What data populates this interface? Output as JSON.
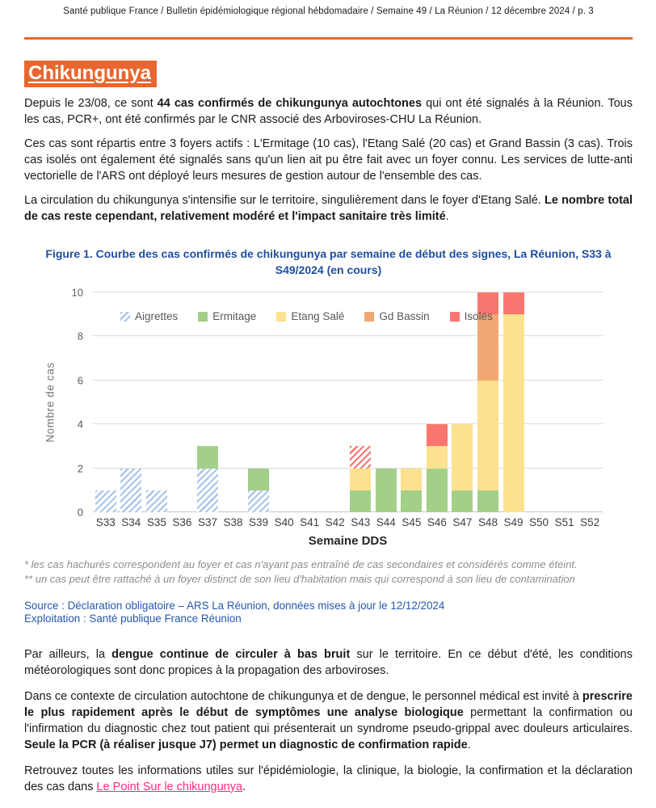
{
  "header": {
    "line": "Santé publique France / Bulletin épidémiologique régional hébdomadaire / Semaine 49 / La Réunion / 12 décembre 2024 / p. 3"
  },
  "section": {
    "title": "Chikungunya"
  },
  "intro_paragraphs": [
    {
      "runs": [
        {
          "t": "Depuis le 23/08, ce sont "
        },
        {
          "t": "44 cas confirmés de chikungunya autochtones",
          "b": true
        },
        {
          "t": " qui ont été signalés à la Réunion. Tous les cas, PCR+, ont été confirmés par le CNR associé des Arboviroses-CHU La Réunion."
        }
      ]
    },
    {
      "runs": [
        {
          "t": "Ces cas sont répartis entre 3 foyers actifs : L'Ermitage (10 cas), l'Etang Salé (20 cas) et Grand Bassin (3 cas). Trois cas isolés ont également été signalés sans qu'un lien ait pu être fait avec un foyer connu. Les services de lutte-anti vectorielle de l'ARS ont déployé leurs mesures de gestion autour de l'ensemble des cas."
        }
      ]
    },
    {
      "runs": [
        {
          "t": "La circulation du chikungunya s'intensifie sur le territoire, singulièrement dans le foyer d'Etang Salé. "
        },
        {
          "t": "Le nombre total de cas reste cependant, relativement modéré et l'impact sanitaire très limité",
          "b": true
        },
        {
          "t": "."
        }
      ]
    }
  ],
  "figure": {
    "title": "Figure 1. Courbe des cas confirmés de chikungunya par semaine de début des signes, La Réunion, S33 à S49/2024 (en cours)"
  },
  "chart_data": {
    "type": "bar",
    "stacked": true,
    "title": "Figure 1. Courbe des cas confirmés de chikungunya par semaine de début des signes, La Réunion, S33 à S49/2024 (en cours)",
    "xlabel": "Semaine DDS",
    "ylabel": "Nombre de cas",
    "ylim": [
      0,
      10
    ],
    "yticks": [
      0,
      2,
      4,
      6,
      8,
      10
    ],
    "grid": "horizontal",
    "legend_position": "top-inside",
    "categories": [
      "S33",
      "S34",
      "S35",
      "S36",
      "S37",
      "S38",
      "S39",
      "S40",
      "S41",
      "S42",
      "S43",
      "S44",
      "S45",
      "S46",
      "S47",
      "S48",
      "S49",
      "S50",
      "S51",
      "S52"
    ],
    "series": [
      {
        "name": "Aigrettes",
        "color": "#A9C5E8",
        "hatched": true,
        "values": [
          1,
          2,
          1,
          0,
          2,
          0,
          1,
          0,
          0,
          0,
          0,
          0,
          0,
          0,
          0,
          0,
          0,
          0,
          0,
          0
        ]
      },
      {
        "name": "Ermitage",
        "color": "#A3CF88",
        "values": [
          0,
          0,
          0,
          0,
          1,
          0,
          1,
          0,
          0,
          0,
          1,
          2,
          1,
          2,
          1,
          1,
          0,
          0,
          0,
          0
        ]
      },
      {
        "name": "Etang Salé",
        "color": "#FDE18F",
        "values": [
          0,
          0,
          0,
          0,
          0,
          0,
          0,
          0,
          0,
          0,
          1,
          0,
          1,
          1,
          3,
          5,
          9,
          0,
          0,
          0
        ]
      },
      {
        "name": "Gd Bassin",
        "color": "#F2A873",
        "values": [
          0,
          0,
          0,
          0,
          0,
          0,
          0,
          0,
          0,
          0,
          0,
          0,
          0,
          0,
          0,
          3,
          0,
          0,
          0,
          0
        ]
      },
      {
        "name": "Isolés",
        "color": "#F8766F",
        "values": [
          0,
          0,
          0,
          0,
          0,
          0,
          0,
          0,
          0,
          0,
          0,
          0,
          0,
          1,
          0,
          1,
          1,
          0,
          0,
          0
        ]
      },
      {
        "name": "Isolés (hachurés)",
        "color": "#F8766F",
        "hatched": true,
        "in_legend": false,
        "values": [
          0,
          0,
          0,
          0,
          0,
          0,
          0,
          0,
          0,
          0,
          1,
          0,
          0,
          0,
          0,
          0,
          0,
          0,
          0,
          0
        ]
      }
    ]
  },
  "footnotes": [
    "* les cas hachurés correspondent au foyer et cas n'ayant pas entraîné de cas secondaires et considérés comme éteint.",
    "** un cas peut être rattaché à un foyer distinct de son lieu d'habitation mais qui correspond à son lieu de contamination"
  ],
  "source": {
    "line1": "Source : Déclaration obligatoire – ARS La Réunion, données mises à jour le 12/12/2024",
    "line2": "Exploitation : Santé publique France Réunion"
  },
  "body_paragraphs": [
    {
      "runs": [
        {
          "t": "Par ailleurs, la "
        },
        {
          "t": "dengue continue de circuler à bas bruit",
          "b": true
        },
        {
          "t": " sur le territoire. En ce début d'été, les conditions météorologiques sont donc propices à la propagation des arboviroses."
        }
      ]
    },
    {
      "runs": [
        {
          "t": "Dans ce contexte de circulation autochtone de chikungunya et de dengue, le personnel médical est invité à "
        },
        {
          "t": "prescrire le plus rapidement après le début de symptômes une analyse biologique",
          "b": true
        },
        {
          "t": " permettant la confirmation ou l'infirmation du diagnostic chez tout patient qui présenterait un syndrome pseudo-grippal avec douleurs articulaires. "
        },
        {
          "t": "Seule la PCR (à réaliser jusque J7) permet un diagnostic de confirmation rapide",
          "b": true
        },
        {
          "t": "."
        }
      ]
    },
    {
      "runs": [
        {
          "t": "Retrouvez toutes les informations utiles sur l'épidémiologie, la clinique, la biologie, la confirmation et la déclaration des cas dans "
        },
        {
          "t": "Le Point Sur le chikungunya",
          "link": true
        },
        {
          "t": "."
        }
      ]
    }
  ],
  "colors": {
    "accent_orange": "#E8662F",
    "figure_blue": "#1F4E9E",
    "source_blue": "#2458AC",
    "link_pink": "#FF2D7D",
    "grid_gray": "#DCDCDC"
  }
}
